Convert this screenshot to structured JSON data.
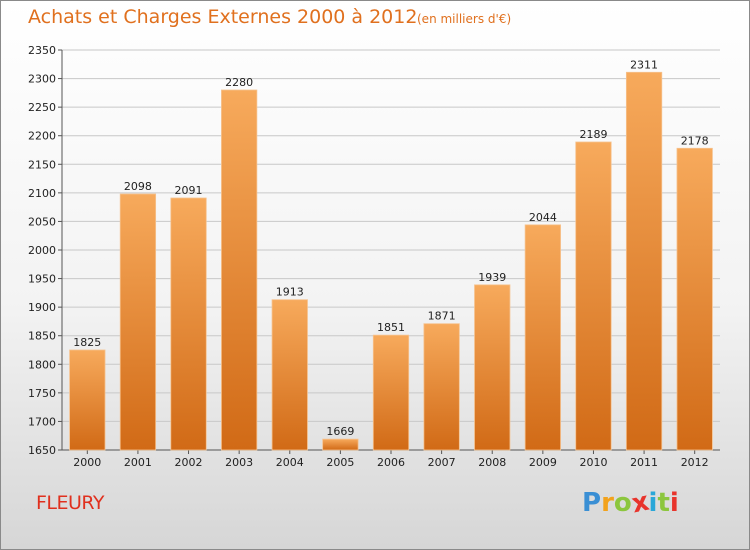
{
  "header": {
    "title": "Achats et Charges Externes 2000 à 2012",
    "unit_note": "(en milliers d'€)"
  },
  "footer": {
    "place": "FLEURY",
    "logo": {
      "letters": [
        "P",
        "r",
        "o",
        "x",
        "i",
        "t",
        "i"
      ],
      "colors": [
        "#3a8fd4",
        "#f2a21c",
        "#8cc63e",
        "#e8342c",
        "#2aa7d8",
        "#8cc63e",
        "#e8342c"
      ]
    }
  },
  "colors": {
    "bar_light": "#f7aa5c",
    "bar_dark": "#d16a16",
    "accent": "#e0701e"
  },
  "chart_data": {
    "type": "bar",
    "title": "Achats et Charges Externes 2000 à 2012",
    "categories": [
      "2000",
      "2001",
      "2002",
      "2003",
      "2004",
      "2005",
      "2006",
      "2007",
      "2008",
      "2009",
      "2010",
      "2011",
      "2012"
    ],
    "values": [
      1825,
      2098,
      2091,
      2280,
      1913,
      1669,
      1851,
      1871,
      1939,
      2044,
      2189,
      2311,
      2178
    ],
    "ylim": [
      1650,
      2350
    ],
    "yticks": [
      1650,
      1700,
      1750,
      1800,
      1850,
      1900,
      1950,
      2000,
      2050,
      2100,
      2150,
      2200,
      2250,
      2300,
      2350
    ],
    "grid": true,
    "xlabel": "",
    "ylabel": ""
  }
}
